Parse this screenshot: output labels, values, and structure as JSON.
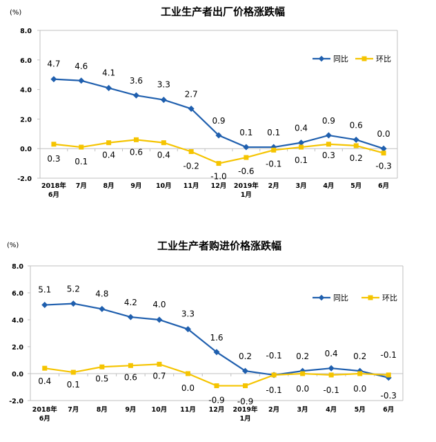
{
  "colors": {
    "yoy": "#1f5fae",
    "mom": "#f5c400",
    "axis": "#bfbfbf"
  },
  "chart_data": [
    {
      "type": "line",
      "title": "工业生产者出厂价格涨跌幅",
      "unit": "(%)",
      "categories": [
        [
          "2018年",
          "6月"
        ],
        [
          "7月"
        ],
        [
          "8月"
        ],
        [
          "9月"
        ],
        [
          "10月"
        ],
        [
          "11月"
        ],
        [
          "12月"
        ],
        [
          "2019年",
          "1月"
        ],
        [
          "2月"
        ],
        [
          "3月"
        ],
        [
          "4月"
        ],
        [
          "5月"
        ],
        [
          "6月"
        ]
      ],
      "ylim": [
        -2.0,
        8.0
      ],
      "yticks": [
        "8.0",
        "6.0",
        "4.0",
        "2.0",
        "0.0",
        "-2.0"
      ],
      "legend_position": "top-right",
      "series": [
        {
          "name": "同比",
          "values": [
            4.7,
            4.6,
            4.1,
            3.6,
            3.3,
            2.7,
            0.9,
            0.1,
            0.1,
            0.4,
            0.9,
            0.6,
            0.0
          ],
          "labels": [
            "4.7",
            "4.6",
            "4.1",
            "3.6",
            "3.3",
            "2.7",
            "0.9",
            "0.1",
            "0.1",
            "0.4",
            "0.9",
            "0.6",
            "0.0"
          ]
        },
        {
          "name": "环比",
          "values": [
            0.3,
            0.1,
            0.4,
            0.6,
            0.4,
            -0.2,
            -1.0,
            -0.6,
            -0.1,
            0.1,
            0.3,
            0.2,
            -0.3
          ],
          "labels": [
            "0.3",
            "0.1",
            "0.4",
            "0.6",
            "0.4",
            "-0.2",
            "-1.0",
            "-0.6",
            "-0.1",
            "0.1",
            "0.3",
            "0.2",
            "-0.3"
          ]
        }
      ]
    },
    {
      "type": "line",
      "title": "工业生产者购进价格涨跌幅",
      "unit": "(%)",
      "categories": [
        [
          "2018年",
          "6月"
        ],
        [
          "7月"
        ],
        [
          "8月"
        ],
        [
          "9月"
        ],
        [
          "10月"
        ],
        [
          "11月"
        ],
        [
          "12月"
        ],
        [
          "2019年",
          "1月"
        ],
        [
          "2月"
        ],
        [
          "3月"
        ],
        [
          "4月"
        ],
        [
          "5月"
        ],
        [
          "6月"
        ]
      ],
      "ylim": [
        -2.0,
        8.0
      ],
      "yticks": [
        "8.0",
        "6.0",
        "4.0",
        "2.0",
        "0.0",
        "-2.0"
      ],
      "legend_position": "top-right",
      "series": [
        {
          "name": "同比",
          "values": [
            5.1,
            5.2,
            4.8,
            4.2,
            4.0,
            3.3,
            1.6,
            0.2,
            -0.1,
            0.2,
            0.4,
            0.2,
            -0.3
          ],
          "labels": [
            "5.1",
            "5.2",
            "4.8",
            "4.2",
            "4.0",
            "3.3",
            "1.6",
            "0.2",
            "-0.1",
            "0.2",
            "0.4",
            "0.2",
            "-0.3"
          ]
        },
        {
          "name": "环比",
          "values": [
            0.4,
            0.1,
            0.5,
            0.6,
            0.7,
            0.0,
            -0.9,
            -0.9,
            -0.1,
            0.0,
            -0.1,
            0.0,
            -0.1
          ],
          "labels": [
            "0.4",
            "0.1",
            "0.5",
            "0.6",
            "0.7",
            "0.0",
            "-0.9",
            "-0.9",
            "-0.1",
            "0.0",
            "-0.1",
            "0.0",
            "-0.1"
          ]
        }
      ]
    }
  ]
}
